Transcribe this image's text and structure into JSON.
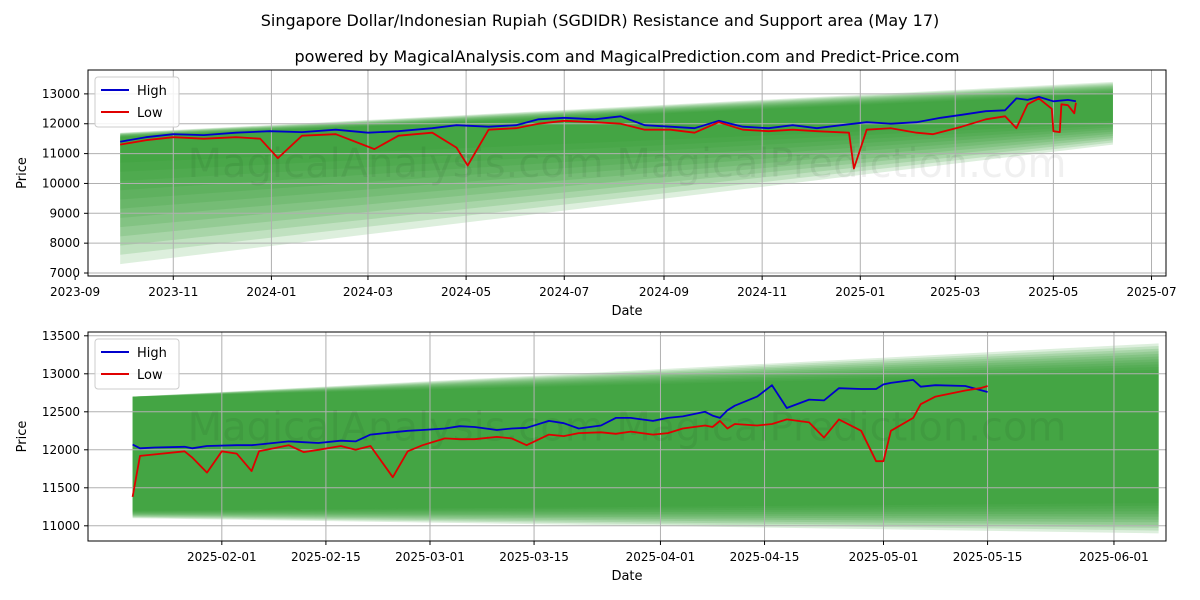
{
  "title": "Singapore Dollar/Indonesian Rupiah (SGDIDR) Resistance and Support area (May 17)",
  "subtitle": "powered by MagicalAnalysis.com and MagicalPrediction.com and Predict-Price.com",
  "watermark": "MagicalAnalysis.com    MagicalPrediction.com",
  "colors": {
    "high": "#0000cc",
    "low": "#e00000",
    "band": "#2e9a2e",
    "grid": "#b0b0b0"
  },
  "chart_data": [
    {
      "type": "line",
      "xlabel": "Date",
      "ylabel": "Price",
      "xlim": [
        "2023-09-09",
        "2025-07-10"
      ],
      "ylim": [
        6900,
        13800
      ],
      "grid": true,
      "legend": "top-left",
      "xticks": [
        "2023-09",
        "2023-11",
        "2024-01",
        "2024-03",
        "2024-05",
        "2024-07",
        "2024-09",
        "2024-11",
        "2025-01",
        "2025-03",
        "2025-05",
        "2025-07"
      ],
      "xtick_dates": [
        "2023-09-01",
        "2023-11-01",
        "2024-01-01",
        "2024-03-01",
        "2024-05-01",
        "2024-07-01",
        "2024-09-01",
        "2024-11-01",
        "2025-01-01",
        "2025-03-01",
        "2025-05-01",
        "2025-07-01"
      ],
      "yticks": [
        7000,
        8000,
        9000,
        10000,
        11000,
        12000,
        13000
      ],
      "band": {
        "start": "2023-09-29",
        "end": "2025-06-07",
        "upper": [
          11700,
          13400
        ],
        "lower": [
          7300,
          11300
        ],
        "core_upper": [
          11550,
          13000
        ],
        "core_lower": [
          10700,
          12100
        ]
      },
      "series": [
        {
          "name": "High",
          "dates": [
            "2023-09-29",
            "2023-10-15",
            "2023-11-01",
            "2023-11-20",
            "2023-12-10",
            "2023-12-31",
            "2024-01-20",
            "2024-02-10",
            "2024-03-01",
            "2024-03-20",
            "2024-04-10",
            "2024-04-25",
            "2024-05-15",
            "2024-06-01",
            "2024-06-15",
            "2024-07-01",
            "2024-07-20",
            "2024-08-05",
            "2024-08-20",
            "2024-09-05",
            "2024-09-20",
            "2024-10-05",
            "2024-10-20",
            "2024-11-05",
            "2024-11-20",
            "2024-12-05",
            "2024-12-20",
            "2025-01-05",
            "2025-01-20",
            "2025-02-05",
            "2025-02-20",
            "2025-03-05",
            "2025-03-20",
            "2025-04-01",
            "2025-04-08",
            "2025-04-15",
            "2025-04-22",
            "2025-05-01",
            "2025-05-10",
            "2025-05-15"
          ],
          "values": [
            11400,
            11550,
            11650,
            11620,
            11700,
            11750,
            11720,
            11800,
            11700,
            11750,
            11850,
            11950,
            11900,
            11950,
            12150,
            12200,
            12150,
            12250,
            11950,
            11900,
            11850,
            12100,
            11900,
            11850,
            11950,
            11850,
            11950,
            12050,
            12000,
            12050,
            12200,
            12300,
            12420,
            12450,
            12850,
            12800,
            12900,
            12750,
            12800,
            12750
          ]
        },
        {
          "name": "Low",
          "dates": [
            "2023-09-29",
            "2023-10-15",
            "2023-11-01",
            "2023-11-20",
            "2023-12-10",
            "2023-12-25",
            "2024-01-05",
            "2024-01-20",
            "2024-02-10",
            "2024-03-05",
            "2024-03-20",
            "2024-04-10",
            "2024-04-25",
            "2024-05-02",
            "2024-05-15",
            "2024-06-01",
            "2024-06-15",
            "2024-07-01",
            "2024-07-20",
            "2024-08-05",
            "2024-08-20",
            "2024-09-05",
            "2024-09-20",
            "2024-10-05",
            "2024-10-20",
            "2024-11-05",
            "2024-11-20",
            "2024-12-05",
            "2024-12-25",
            "2024-12-28",
            "2025-01-05",
            "2025-01-20",
            "2025-02-05",
            "2025-02-15",
            "2025-03-05",
            "2025-03-20",
            "2025-04-01",
            "2025-04-08",
            "2025-04-15",
            "2025-04-22",
            "2025-04-30",
            "2025-05-01",
            "2025-05-05",
            "2025-05-06",
            "2025-05-10",
            "2025-05-14",
            "2025-05-15"
          ],
          "values": [
            11300,
            11450,
            11550,
            11500,
            11550,
            11500,
            10850,
            11600,
            11650,
            11150,
            11600,
            11700,
            11200,
            10600,
            11800,
            11850,
            12000,
            12100,
            12050,
            12000,
            11800,
            11800,
            11700,
            12050,
            11800,
            11750,
            11800,
            11750,
            11700,
            10500,
            11800,
            11850,
            11700,
            11650,
            11900,
            12150,
            12250,
            11850,
            12650,
            12850,
            12500,
            11750,
            11720,
            12650,
            12620,
            12350,
            12700
          ]
        }
      ]
    },
    {
      "type": "line",
      "xlabel": "Date",
      "ylabel": "Price",
      "xlim": [
        "2025-01-14",
        "2025-06-08"
      ],
      "ylim": [
        10800,
        13550
      ],
      "grid": true,
      "legend": "top-left",
      "xticks": [
        "2025-02-01",
        "2025-02-15",
        "2025-03-01",
        "2025-03-15",
        "2025-04-01",
        "2025-04-15",
        "2025-05-01",
        "2025-05-15",
        "2025-06-01"
      ],
      "xtick_dates": [
        "2025-02-01",
        "2025-02-15",
        "2025-03-01",
        "2025-03-15",
        "2025-04-01",
        "2025-04-15",
        "2025-05-01",
        "2025-05-15",
        "2025-06-01"
      ],
      "yticks": [
        11000,
        11500,
        12000,
        12500,
        13000,
        13500
      ],
      "band": {
        "start": "2025-01-20",
        "end": "2025-06-07",
        "upper": [
          12700,
          13400
        ],
        "lower": [
          11100,
          10900
        ],
        "core_upper": [
          12700,
          13020
        ],
        "core_lower": [
          11200,
          11300
        ]
      },
      "series": [
        {
          "name": "High",
          "dates": [
            "2025-01-20",
            "2025-01-21",
            "2025-01-23",
            "2025-01-27",
            "2025-01-28",
            "2025-01-30",
            "2025-02-03",
            "2025-02-05",
            "2025-02-06",
            "2025-02-10",
            "2025-02-12",
            "2025-02-14",
            "2025-02-17",
            "2025-02-19",
            "2025-02-21",
            "2025-02-24",
            "2025-02-26",
            "2025-02-28",
            "2025-03-03",
            "2025-03-05",
            "2025-03-07",
            "2025-03-10",
            "2025-03-12",
            "2025-03-14",
            "2025-03-17",
            "2025-03-19",
            "2025-03-21",
            "2025-03-24",
            "2025-03-26",
            "2025-03-28",
            "2025-03-31",
            "2025-04-02",
            "2025-04-04",
            "2025-04-07",
            "2025-04-08",
            "2025-04-09",
            "2025-04-10",
            "2025-04-11",
            "2025-04-14",
            "2025-04-16",
            "2025-04-18",
            "2025-04-21",
            "2025-04-23",
            "2025-04-25",
            "2025-04-28",
            "2025-04-30",
            "2025-05-01",
            "2025-05-02",
            "2025-05-05",
            "2025-05-06",
            "2025-05-08",
            "2025-05-12",
            "2025-05-15"
          ],
          "values": [
            12070,
            12020,
            12030,
            12040,
            12020,
            12050,
            12060,
            12060,
            12070,
            12110,
            12100,
            12090,
            12120,
            12110,
            12200,
            12230,
            12250,
            12260,
            12280,
            12310,
            12300,
            12260,
            12280,
            12290,
            12380,
            12350,
            12280,
            12320,
            12420,
            12420,
            12380,
            12420,
            12440,
            12500,
            12450,
            12420,
            12520,
            12580,
            12700,
            12850,
            12550,
            12660,
            12650,
            12810,
            12800,
            12800,
            12860,
            12880,
            12920,
            12830,
            12850,
            12840,
            12760
          ]
        },
        {
          "name": "Low",
          "dates": [
            "2025-01-20",
            "2025-01-21",
            "2025-01-23",
            "2025-01-27",
            "2025-01-28",
            "2025-01-30",
            "2025-02-01",
            "2025-02-03",
            "2025-02-05",
            "2025-02-06",
            "2025-02-10",
            "2025-02-12",
            "2025-02-14",
            "2025-02-17",
            "2025-02-19",
            "2025-02-21",
            "2025-02-24",
            "2025-02-26",
            "2025-02-28",
            "2025-03-03",
            "2025-03-05",
            "2025-03-07",
            "2025-03-10",
            "2025-03-12",
            "2025-03-14",
            "2025-03-17",
            "2025-03-19",
            "2025-03-21",
            "2025-03-24",
            "2025-03-26",
            "2025-03-28",
            "2025-03-31",
            "2025-04-02",
            "2025-04-04",
            "2025-04-07",
            "2025-04-08",
            "2025-04-09",
            "2025-04-10",
            "2025-04-11",
            "2025-04-14",
            "2025-04-16",
            "2025-04-18",
            "2025-04-21",
            "2025-04-23",
            "2025-04-25",
            "2025-04-28",
            "2025-04-30",
            "2025-05-01",
            "2025-05-02",
            "2025-05-05",
            "2025-05-06",
            "2025-05-08",
            "2025-05-12",
            "2025-05-14",
            "2025-05-15"
          ],
          "values": [
            11380,
            11920,
            11940,
            11980,
            11900,
            11700,
            11980,
            11950,
            11720,
            11980,
            12060,
            11970,
            12000,
            12050,
            12000,
            12050,
            11640,
            11980,
            12060,
            12150,
            12140,
            12140,
            12170,
            12150,
            12060,
            12200,
            12180,
            12220,
            12230,
            12210,
            12240,
            12200,
            12220,
            12280,
            12320,
            12300,
            12380,
            12280,
            12340,
            12320,
            12340,
            12400,
            12360,
            12160,
            12400,
            12250,
            11850,
            11850,
            12250,
            12420,
            12600,
            12700,
            12780,
            12810,
            12840
          ]
        }
      ]
    }
  ]
}
